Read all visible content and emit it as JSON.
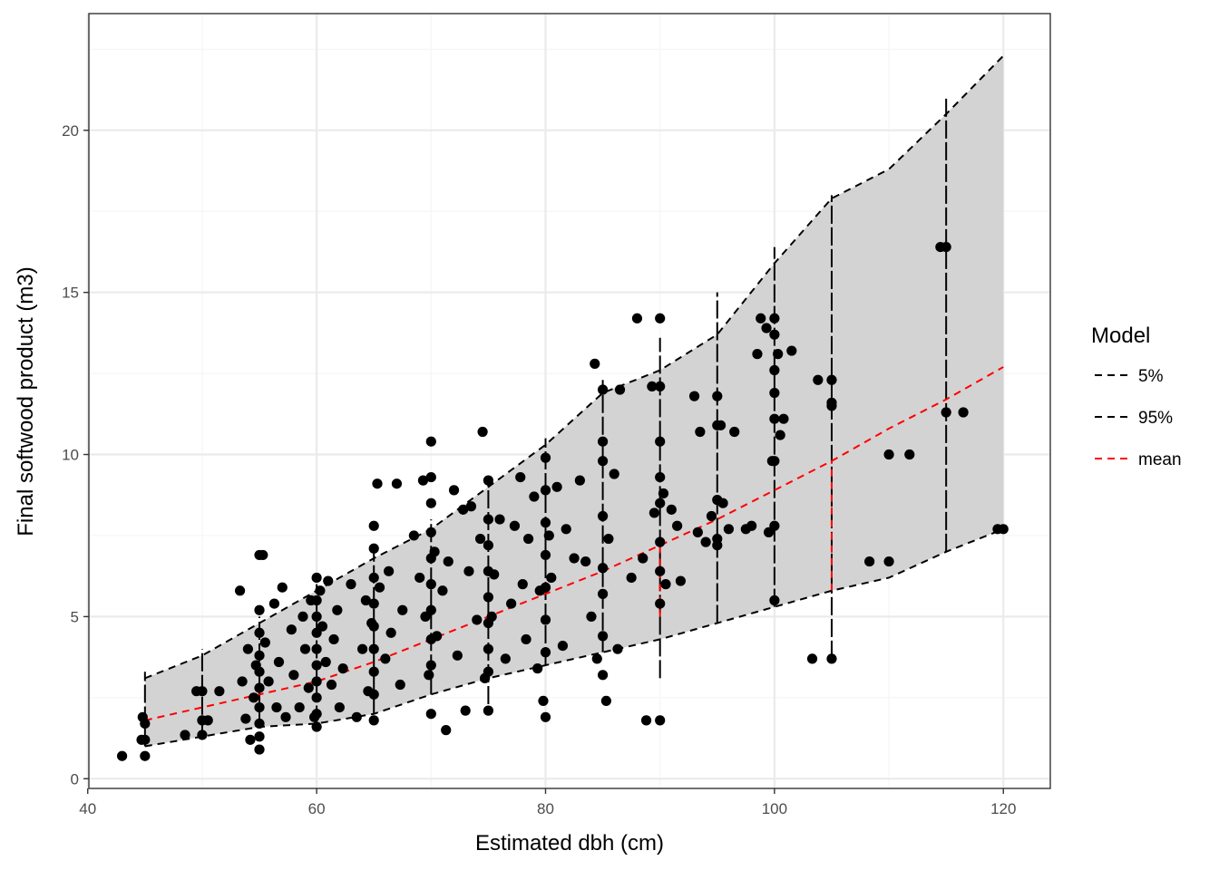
{
  "chart_data": {
    "type": "scatter",
    "xlabel": "Estimated dbh (cm)",
    "ylabel": "Final softwood product (m3)",
    "xlim": [
      40.1,
      124.1
    ],
    "ylim": [
      -0.3,
      23.6
    ],
    "x_ticks": [
      40,
      60,
      80,
      100,
      120
    ],
    "y_ticks": [
      0,
      5,
      10,
      15,
      20
    ],
    "grid": true,
    "legend": {
      "title": "Model",
      "placement": "right",
      "entries": [
        "5%",
        "95%",
        "mean"
      ]
    },
    "colors": {
      "band_fill": "#d3d3d3",
      "interval_line": "#000000",
      "mean_line": "#ff0000",
      "points": "#000000",
      "grid_major": "#ebebeb",
      "grid_minor": "#f5f5f5"
    },
    "band": {
      "x": [
        45,
        50,
        55,
        60,
        65,
        70,
        75,
        80,
        85,
        90,
        95,
        100,
        105,
        110,
        115,
        120
      ],
      "lower": [
        1.0,
        1.3,
        1.6,
        1.7,
        2.0,
        2.6,
        3.1,
        3.5,
        3.9,
        4.3,
        4.8,
        5.3,
        5.8,
        6.2,
        7.0,
        7.7
      ],
      "upper": [
        3.1,
        3.8,
        4.8,
        5.8,
        6.8,
        7.7,
        9.0,
        10.3,
        11.9,
        12.6,
        13.7,
        15.9,
        17.9,
        18.8,
        20.5,
        22.3
      ]
    },
    "series": [
      {
        "name": "5%",
        "style": "dashed",
        "color": "#000000",
        "x": [
          45,
          50,
          55,
          60,
          65,
          70,
          75,
          80,
          85,
          90,
          95,
          100,
          105,
          110,
          115,
          120
        ],
        "y": [
          1.0,
          1.3,
          1.6,
          1.7,
          2.0,
          2.6,
          3.1,
          3.5,
          3.9,
          4.3,
          4.8,
          5.3,
          5.8,
          6.2,
          7.0,
          7.7
        ]
      },
      {
        "name": "95%",
        "style": "dashed",
        "color": "#000000",
        "x": [
          45,
          50,
          55,
          60,
          65,
          70,
          75,
          80,
          85,
          90,
          95,
          100,
          105,
          110,
          115,
          120
        ],
        "y": [
          3.1,
          3.8,
          4.8,
          5.8,
          6.8,
          7.7,
          9.0,
          10.3,
          11.9,
          12.6,
          13.7,
          15.9,
          17.9,
          18.8,
          20.5,
          22.3
        ]
      },
      {
        "name": "mean",
        "style": "dashed",
        "color": "#ff0000",
        "x": [
          45,
          50,
          55,
          60,
          65,
          70,
          75,
          80,
          85,
          90,
          95,
          100,
          105,
          110,
          115,
          120
        ],
        "y": [
          1.8,
          2.2,
          2.6,
          3.0,
          3.6,
          4.3,
          5.0,
          5.7,
          6.4,
          7.2,
          8.0,
          8.9,
          9.8,
          10.8,
          11.7,
          12.7
        ]
      }
    ],
    "vertical_segments": [
      {
        "x": 45,
        "y0": 1.0,
        "y1": 3.3
      },
      {
        "x": 50,
        "y0": 1.3,
        "y1": 4.0
      },
      {
        "x": 55,
        "y0": 1.6,
        "y1": 5.0
      },
      {
        "x": 60,
        "y0": 1.7,
        "y1": 6.0
      },
      {
        "x": 65,
        "y0": 2.0,
        "y1": 7.0
      },
      {
        "x": 70,
        "y0": 2.6,
        "y1": 8.0
      },
      {
        "x": 75,
        "y0": 2.3,
        "y1": 9.2
      },
      {
        "x": 80,
        "y0": 3.5,
        "y1": 10.5
      },
      {
        "x": 85,
        "y0": 3.9,
        "y1": 12.3
      },
      {
        "x": 90,
        "y0": 3.1,
        "y1": 13.6
      },
      {
        "x": 95,
        "y0": 4.8,
        "y1": 15.0
      },
      {
        "x": 100,
        "y0": 5.3,
        "y1": 16.4
      },
      {
        "x": 105,
        "y0": 3.7,
        "y1": 18.0
      },
      {
        "x": 115,
        "y0": 7.0,
        "y1": 21.0
      }
    ],
    "mean_vertical_segments": [
      {
        "x": 90,
        "y0": 5.0,
        "y1": 7.2
      },
      {
        "x": 105,
        "y0": 5.8,
        "y1": 9.8
      }
    ],
    "points": {
      "x": [
        43,
        44.7,
        44.8,
        45,
        45,
        45,
        48.5,
        49.5,
        50,
        50,
        50,
        50.5,
        51.5,
        53.3,
        53.5,
        53.8,
        54,
        54.2,
        54.5,
        54.7,
        55,
        55,
        55,
        55,
        55,
        55,
        55,
        55,
        55,
        55,
        55.3,
        55.5,
        55.8,
        56.3,
        56.5,
        56.7,
        57,
        57.3,
        57.8,
        58,
        58.5,
        58.8,
        59,
        59.3,
        59.5,
        59.8,
        60,
        60,
        60,
        60,
        60,
        60,
        60,
        60,
        60,
        60,
        60.3,
        60.5,
        60.8,
        61,
        61.3,
        61.5,
        61.8,
        62,
        62.3,
        63,
        63.5,
        64,
        64.3,
        64.5,
        64.8,
        65,
        65,
        65,
        65,
        65,
        65,
        65,
        65,
        65,
        65.3,
        65.5,
        66,
        66.3,
        66.5,
        67,
        67.3,
        67.5,
        68.5,
        69,
        69.3,
        69.5,
        69.8,
        70,
        70,
        70,
        70,
        70,
        70,
        70,
        70,
        70,
        70,
        70.3,
        70.5,
        71,
        71.3,
        71.5,
        72,
        72.3,
        72.8,
        73,
        73.3,
        73.5,
        74,
        74.3,
        74.5,
        74.7,
        75,
        75,
        75,
        75,
        75,
        75,
        75,
        75,
        75,
        75.3,
        75.5,
        76,
        76.5,
        77,
        77.3,
        77.8,
        78,
        78.3,
        78.5,
        79,
        79.3,
        79.5,
        79.8,
        80,
        80,
        80,
        80,
        80,
        80,
        80,
        80,
        80.3,
        80.5,
        81,
        81.5,
        81.8,
        82.5,
        83,
        83.5,
        84,
        84.3,
        84.5,
        85,
        85,
        85,
        85,
        85,
        85,
        85,
        85,
        85.3,
        85.5,
        86,
        86.3,
        86.5,
        87.5,
        88,
        88.5,
        88.8,
        89.3,
        89.5,
        90,
        90,
        90,
        90,
        90,
        90,
        90,
        90,
        90,
        90.3,
        90.5,
        91,
        91.5,
        91.8,
        93,
        93.3,
        93.5,
        94,
        94.5,
        95,
        95,
        95,
        95,
        95,
        95.3,
        95.5,
        96,
        96.5,
        97.5,
        98,
        98.5,
        98.8,
        99.3,
        99.5,
        99.8,
        100,
        100,
        100,
        100,
        100,
        100,
        100,
        100,
        100.3,
        100.5,
        100.8,
        101.5,
        103.3,
        103.8,
        105,
        105,
        105,
        105,
        108.3,
        110,
        110,
        111.8,
        114.5,
        115,
        115,
        116.5,
        119.5,
        120
      ],
      "y": [
        0.7,
        1.2,
        1.9,
        1.7,
        1.2,
        0.7,
        1.35,
        2.7,
        1.8,
        1.35,
        2.7,
        1.8,
        2.7,
        5.8,
        3.0,
        1.85,
        4.0,
        1.2,
        2.5,
        3.5,
        6.9,
        5.2,
        4.5,
        3.8,
        3.3,
        2.8,
        2.2,
        1.7,
        1.3,
        0.9,
        6.9,
        4.2,
        3.0,
        5.4,
        2.2,
        3.6,
        5.9,
        1.9,
        4.6,
        3.2,
        2.2,
        5.0,
        4.0,
        2.8,
        5.5,
        1.9,
        6.2,
        5.5,
        5.0,
        4.5,
        4.0,
        3.5,
        3.0,
        2.5,
        2.0,
        1.6,
        5.8,
        4.7,
        3.6,
        6.1,
        2.9,
        4.3,
        5.2,
        2.2,
        3.4,
        6.0,
        1.9,
        4.0,
        5.5,
        2.7,
        4.8,
        7.8,
        7.1,
        6.2,
        5.4,
        4.7,
        4.0,
        3.3,
        2.6,
        1.8,
        9.1,
        5.9,
        3.7,
        6.4,
        4.5,
        9.1,
        2.9,
        5.2,
        7.5,
        6.2,
        9.2,
        5.0,
        3.2,
        10.4,
        9.3,
        8.5,
        7.6,
        6.8,
        6.0,
        5.2,
        4.3,
        3.5,
        2.0,
        7.0,
        4.4,
        5.8,
        1.5,
        6.7,
        8.9,
        3.8,
        8.3,
        2.1,
        6.4,
        8.4,
        4.9,
        7.4,
        10.7,
        3.1,
        9.2,
        8.0,
        7.2,
        6.4,
        5.6,
        4.8,
        4.0,
        3.3,
        2.1,
        5.0,
        6.3,
        8.0,
        3.7,
        5.4,
        7.8,
        9.3,
        6.0,
        4.3,
        7.4,
        8.7,
        3.4,
        5.8,
        2.4,
        9.9,
        8.9,
        7.9,
        6.9,
        5.9,
        4.9,
        3.9,
        1.9,
        7.5,
        6.2,
        9.0,
        4.1,
        7.7,
        6.8,
        9.2,
        6.7,
        5.0,
        12.8,
        3.7,
        12.0,
        10.4,
        9.8,
        8.1,
        6.5,
        5.7,
        4.4,
        3.2,
        2.4,
        7.4,
        9.4,
        4.0,
        12.0,
        6.2,
        14.2,
        6.8,
        1.8,
        12.1,
        8.2,
        14.2,
        12.1,
        10.4,
        9.3,
        8.5,
        7.3,
        6.4,
        5.4,
        1.8,
        8.8,
        6.0,
        8.3,
        7.8,
        6.1,
        11.8,
        7.6,
        10.7,
        7.3,
        8.1,
        11.8,
        10.9,
        8.6,
        7.4,
        7.2,
        10.9,
        8.5,
        7.7,
        10.7,
        7.7,
        7.8,
        13.1,
        14.2,
        13.9,
        7.6,
        9.8,
        14.2,
        13.7,
        12.6,
        11.9,
        11.1,
        9.8,
        7.8,
        5.5,
        13.1,
        10.6,
        11.1,
        13.2,
        3.7,
        12.3,
        12.3,
        11.6,
        11.5,
        3.7,
        6.7,
        10.0,
        6.7,
        10.0,
        16.4,
        16.4,
        11.3,
        11.3,
        7.7,
        7.7
      ]
    }
  }
}
